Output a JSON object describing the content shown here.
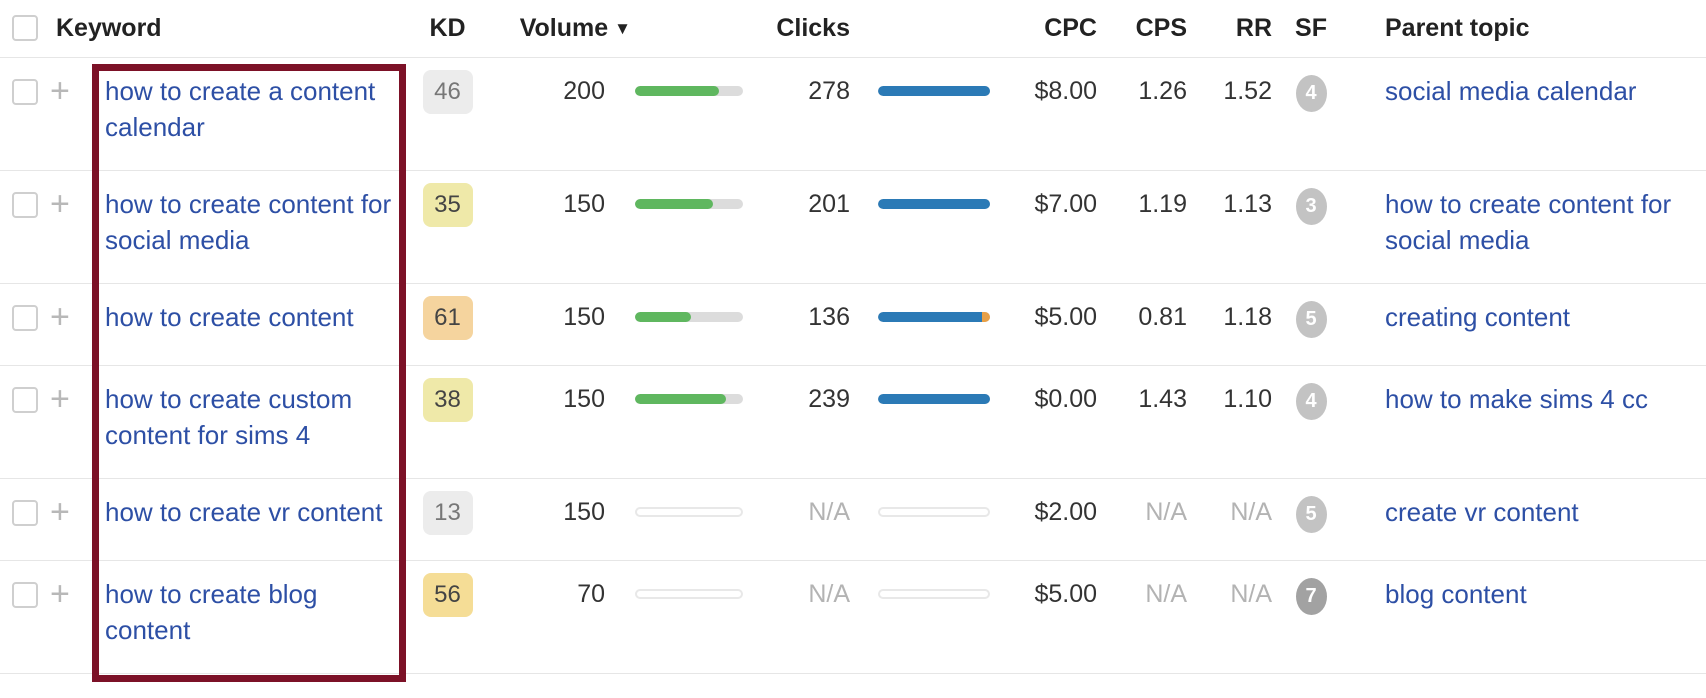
{
  "icons": {
    "sort_desc": "▼",
    "plus": "+"
  },
  "colors": {
    "link": "#2d4fa5",
    "highlight": "#7c1127",
    "green": "#5fb75f",
    "blue": "#2b7ab6",
    "orange": "#e8a047",
    "na": "#b3b3b3"
  },
  "table": {
    "header": {
      "keyword": "Keyword",
      "kd": "KD",
      "volume": "Volume",
      "clicks": "Clicks",
      "cpc": "CPC",
      "cps": "CPS",
      "rr": "RR",
      "sf": "SF",
      "parent_topic": "Parent topic",
      "sorted_column": "Volume",
      "sort_direction": "desc"
    },
    "rows": [
      {
        "keyword": "how to create a content calendar",
        "kd": {
          "value": "46",
          "tone": "gray"
        },
        "volume": {
          "value": "200",
          "bar_pct": 78
        },
        "clicks": {
          "value": "278",
          "bar_pct": 100,
          "overflow_pct": 0
        },
        "cpc": "$8.00",
        "cps": "1.26",
        "rr": "1.52",
        "sf": {
          "value": "4",
          "tone": "light"
        },
        "parent_topic": "social media calendar"
      },
      {
        "keyword": "how to create content for social media",
        "kd": {
          "value": "35",
          "tone": "yellow"
        },
        "volume": {
          "value": "150",
          "bar_pct": 72
        },
        "clicks": {
          "value": "201",
          "bar_pct": 100,
          "overflow_pct": 0
        },
        "cpc": "$7.00",
        "cps": "1.19",
        "rr": "1.13",
        "sf": {
          "value": "3",
          "tone": "light"
        },
        "parent_topic": "how to create content for social media"
      },
      {
        "keyword": "how to create content",
        "kd": {
          "value": "61",
          "tone": "orange"
        },
        "volume": {
          "value": "150",
          "bar_pct": 52
        },
        "clicks": {
          "value": "136",
          "bar_pct": 93,
          "overflow_pct": 7
        },
        "cpc": "$5.00",
        "cps": "0.81",
        "rr": "1.18",
        "sf": {
          "value": "5",
          "tone": "light"
        },
        "parent_topic": "creating content"
      },
      {
        "keyword": "how to create custom content for sims 4",
        "kd": {
          "value": "38",
          "tone": "yellow"
        },
        "volume": {
          "value": "150",
          "bar_pct": 84
        },
        "clicks": {
          "value": "239",
          "bar_pct": 100,
          "overflow_pct": 0
        },
        "cpc": "$0.00",
        "cps": "1.43",
        "rr": "1.10",
        "sf": {
          "value": "4",
          "tone": "light"
        },
        "parent_topic": "how to make sims 4 cc"
      },
      {
        "keyword": "how to create vr content",
        "kd": {
          "value": "13",
          "tone": "gray"
        },
        "volume": {
          "value": "150",
          "bar_pct": 0
        },
        "clicks": {
          "value": "N/A",
          "bar_pct": 0,
          "overflow_pct": 0
        },
        "cpc": "$2.00",
        "cps": "N/A",
        "rr": "N/A",
        "sf": {
          "value": "5",
          "tone": "light"
        },
        "parent_topic": "create vr content"
      },
      {
        "keyword": "how to create blog content",
        "kd": {
          "value": "56",
          "tone": "gold"
        },
        "volume": {
          "value": "70",
          "bar_pct": 0
        },
        "clicks": {
          "value": "N/A",
          "bar_pct": 0,
          "overflow_pct": 0
        },
        "cpc": "$5.00",
        "cps": "N/A",
        "rr": "N/A",
        "sf": {
          "value": "7",
          "tone": "dark"
        },
        "parent_topic": "blog content"
      }
    ]
  }
}
